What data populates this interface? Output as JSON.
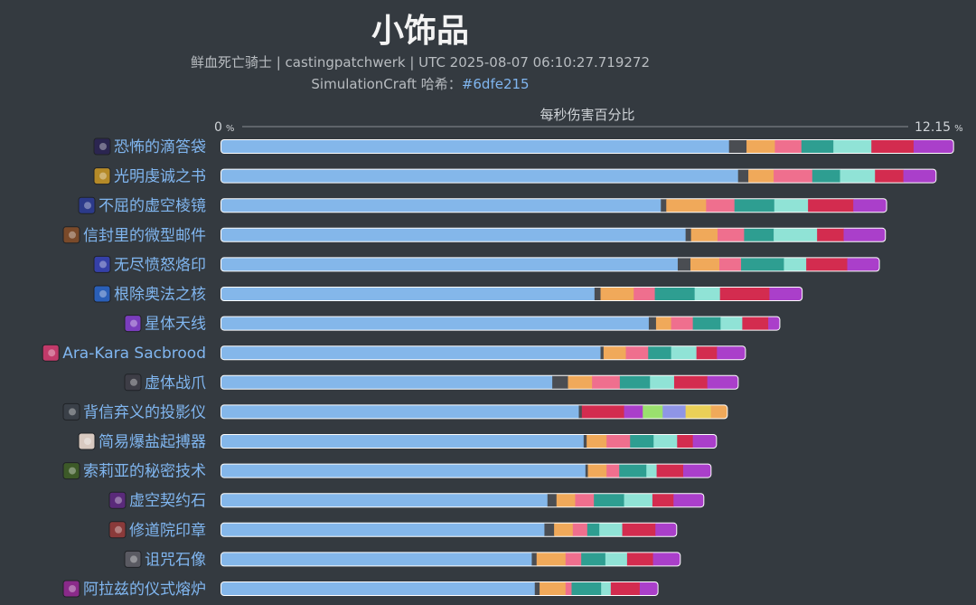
{
  "chart_data": {
    "type": "bar",
    "orientation": "horizontal",
    "stacked": true,
    "title": "小饰品",
    "subtitle_line1": "鲜血死亡骑士 | castingpatchwerk | UTC 2025-08-07 06:10:27.719272",
    "subtitle_line2_prefix": "SimulationCraft 哈希：",
    "subtitle_line2_hash": "#6dfe215",
    "axis_title": "每秒伤害百分比",
    "axis_min_label": "0",
    "axis_max_label": "12.15",
    "axis_unit": "%",
    "xlim": [
      0,
      12.15
    ],
    "categories": [
      "恐怖的滴答袋",
      "光明虔诚之书",
      "不屈的虚空棱镜",
      "信封里的微型邮件",
      "无尽愤怒烙印",
      "根除奥法之核",
      "星体天线",
      "Ara-Kara Sacbrood",
      "虚体战爪",
      "背信弃义的投影仪",
      "简易爆盐起搏器",
      "索莉亚的秘密技术",
      "虚空契约石",
      "修道院印章",
      "诅咒石像",
      "阿拉兹的仪式熔炉"
    ],
    "segment_colors": [
      "#84b7ea",
      "#4a4d52",
      "#f0a95a",
      "#ef6f8e",
      "#2e9e91",
      "#90e3d6",
      "#d32c4f",
      "#aa3fca",
      "#9ae06e",
      "#8f95e6",
      "#ead058"
    ],
    "series": [
      {
        "values": [
          8.43,
          8.58,
          7.3,
          7.71,
          7.58,
          6.2,
          7.1,
          6.3,
          5.5,
          5.94,
          6.02,
          6.05,
          5.42,
          5.37,
          5.16,
          5.21
        ]
      },
      {
        "values": [
          0.29,
          0.17,
          0.09,
          0.09,
          0.21,
          0.1,
          0.12,
          0.05,
          0.26,
          0.05,
          0.05,
          0.04,
          0.15,
          0.16,
          0.08,
          0.08
        ]
      },
      {
        "values": [
          0.47,
          0.42,
          0.66,
          0.44,
          0.48,
          0.55,
          0.25,
          0.37,
          0.4,
          0.0,
          0.33,
          0.31,
          0.31,
          0.31,
          0.48,
          0.43
        ]
      },
      {
        "values": [
          0.44,
          0.64,
          0.47,
          0.44,
          0.36,
          0.35,
          0.36,
          0.37,
          0.46,
          0.0,
          0.39,
          0.21,
          0.31,
          0.24,
          0.26,
          0.1
        ]
      },
      {
        "values": [
          0.53,
          0.46,
          0.66,
          0.49,
          0.71,
          0.66,
          0.46,
          0.38,
          0.5,
          0.0,
          0.39,
          0.45,
          0.5,
          0.2,
          0.4,
          0.49
        ]
      },
      {
        "values": [
          0.63,
          0.58,
          0.56,
          0.72,
          0.37,
          0.42,
          0.36,
          0.42,
          0.4,
          0.0,
          0.39,
          0.17,
          0.47,
          0.38,
          0.36,
          0.16
        ]
      },
      {
        "values": [
          0.7,
          0.47,
          0.75,
          0.44,
          0.68,
          0.82,
          0.43,
          0.34,
          0.55,
          0.7,
          0.26,
          0.44,
          0.35,
          0.55,
          0.43,
          0.48
        ]
      },
      {
        "values": [
          0.67,
          0.55,
          0.56,
          0.7,
          0.54,
          0.55,
          0.2,
          0.48,
          0.52,
          0.31,
          0.4,
          0.47,
          0.51,
          0.36,
          0.46,
          0.31
        ]
      },
      {
        "values": [
          0,
          0,
          0,
          0,
          0,
          0,
          0,
          0,
          0,
          0.33,
          0,
          0,
          0,
          0,
          0,
          0
        ]
      },
      {
        "values": [
          0,
          0,
          0,
          0,
          0,
          0,
          0,
          0,
          0,
          0.38,
          0,
          0,
          0,
          0,
          0,
          0
        ]
      },
      {
        "values": [
          0,
          0,
          0,
          0,
          0,
          0,
          0,
          0,
          0,
          0.42,
          0,
          0,
          0,
          0,
          0,
          0
        ]
      },
      {
        "values": [
          0,
          0,
          0,
          0,
          0,
          0,
          0,
          0,
          0,
          0.28,
          0,
          0,
          0,
          0,
          0,
          0
        ]
      }
    ],
    "series_color_index": [
      0,
      1,
      2,
      3,
      4,
      5,
      6,
      7,
      8,
      9,
      10,
      2
    ],
    "icon_colors": [
      "#2b2550",
      "#b58a28",
      "#2c3a8a",
      "#7a4a2a",
      "#3540a8",
      "#2a5fb8",
      "#7a3dbd",
      "#c23a6a",
      "#3d3d46",
      "#3a4048",
      "#d8c9c0",
      "#3d5a28",
      "#5a2a7a",
      "#8a3a3a",
      "#5a5a62",
      "#8a2a8a"
    ],
    "icon_names": [
      "dread-pouch-icon",
      "book-icon",
      "void-prism-icon",
      "mail-icon",
      "rage-brand-icon",
      "arcane-core-icon",
      "antenna-icon",
      "sacbrood-icon",
      "claw-icon",
      "projector-icon",
      "pacemaker-icon",
      "secret-tech-icon",
      "void-stone-icon",
      "seal-icon",
      "statue-icon",
      "forge-icon"
    ]
  }
}
